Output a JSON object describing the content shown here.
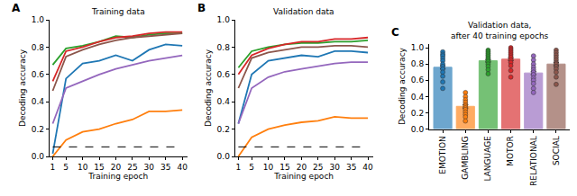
{
  "chart_data": [
    {
      "type": "line",
      "title": "Training data",
      "annotations": [
        "A"
      ],
      "x_label": "Training epoch",
      "y_label": "Decoding accuracy",
      "x": [
        1,
        5,
        10,
        15,
        20,
        25,
        30,
        35,
        40
      ],
      "series": [
        {
          "name": "EMOTION",
          "color": "#1f77b4",
          "values": [
            0.02,
            0.57,
            0.68,
            0.7,
            0.74,
            0.7,
            0.78,
            0.82,
            0.81
          ]
        },
        {
          "name": "GAMBLING",
          "color": "#ff7f0e",
          "values": [
            0.0,
            0.12,
            0.18,
            0.2,
            0.24,
            0.27,
            0.33,
            0.33,
            0.34
          ]
        },
        {
          "name": "LANGUAGE",
          "color": "#2ca02c",
          "values": [
            0.67,
            0.79,
            0.81,
            0.84,
            0.88,
            0.87,
            0.89,
            0.9,
            0.9
          ]
        },
        {
          "name": "MOTOR",
          "color": "#d62728",
          "values": [
            0.55,
            0.77,
            0.8,
            0.84,
            0.87,
            0.88,
            0.9,
            0.91,
            0.91
          ]
        },
        {
          "name": "RELATIONAL",
          "color": "#9467bd",
          "values": [
            0.24,
            0.5,
            0.55,
            0.6,
            0.64,
            0.67,
            0.7,
            0.72,
            0.74
          ]
        },
        {
          "name": "SOCIAL",
          "color": "#8c564b",
          "values": [
            0.48,
            0.73,
            0.78,
            0.82,
            0.85,
            0.87,
            0.88,
            0.89,
            0.9
          ]
        },
        {
          "color": "#000000",
          "line_style": "dashed",
          "values": [
            0.07,
            0.07,
            0.07,
            0.07,
            0.07,
            0.07,
            0.07,
            0.07,
            0.07
          ]
        }
      ],
      "xlim": [
        0,
        41.5
      ],
      "xticks": [
        1,
        5,
        10,
        15,
        20,
        25,
        30,
        35,
        40
      ],
      "ylim": [
        0,
        1
      ],
      "yticks": [
        {
          "value": 0,
          "label": "0.0"
        },
        {
          "value": 0.2,
          "label": "0.2"
        },
        {
          "value": 0.4,
          "label": "0.4"
        },
        {
          "value": 0.6,
          "label": "0.6"
        },
        {
          "value": 0.8,
          "label": "0.8"
        },
        {
          "value": 1,
          "label": "1.0"
        }
      ],
      "grid": false
    },
    {
      "type": "line",
      "title": "Validation data",
      "annotations": [
        "B"
      ],
      "x_label": "Training epoch",
      "y_label": "Decoding accuracy",
      "x": [
        1,
        5,
        10,
        15,
        20,
        25,
        30,
        35,
        40
      ],
      "series": [
        {
          "name": "EMOTION",
          "color": "#1f77b4",
          "values": [
            0.24,
            0.6,
            0.7,
            0.72,
            0.74,
            0.73,
            0.77,
            0.77,
            0.76
          ]
        },
        {
          "name": "GAMBLING",
          "color": "#ff7f0e",
          "values": [
            0.0,
            0.14,
            0.2,
            0.23,
            0.25,
            0.26,
            0.29,
            0.28,
            0.28
          ]
        },
        {
          "name": "LANGUAGE",
          "color": "#2ca02c",
          "values": [
            0.65,
            0.77,
            0.8,
            0.82,
            0.83,
            0.83,
            0.84,
            0.84,
            0.85
          ]
        },
        {
          "name": "MOTOR",
          "color": "#d62728",
          "values": [
            0.6,
            0.74,
            0.79,
            0.82,
            0.84,
            0.84,
            0.86,
            0.86,
            0.87
          ]
        },
        {
          "name": "RELATIONAL",
          "color": "#9467bd",
          "values": [
            0.24,
            0.5,
            0.58,
            0.62,
            0.64,
            0.66,
            0.68,
            0.69,
            0.69
          ]
        },
        {
          "name": "SOCIAL",
          "color": "#8c564b",
          "values": [
            0.5,
            0.72,
            0.76,
            0.78,
            0.8,
            0.8,
            0.81,
            0.81,
            0.8
          ]
        },
        {
          "color": "#000000",
          "line_style": "dashed",
          "values": [
            0.07,
            0.07,
            0.07,
            0.07,
            0.07,
            0.07,
            0.07,
            0.07,
            0.07
          ]
        }
      ],
      "xlim": [
        0,
        41.5
      ],
      "xticks": [
        1,
        5,
        10,
        15,
        20,
        25,
        30,
        35,
        40
      ],
      "ylim": [
        0,
        1
      ],
      "yticks": [
        {
          "value": 0,
          "label": "0.0"
        },
        {
          "value": 0.2,
          "label": "0.2"
        },
        {
          "value": 0.4,
          "label": "0.4"
        },
        {
          "value": 0.6,
          "label": "0.6"
        },
        {
          "value": 0.8,
          "label": "0.8"
        },
        {
          "value": 1,
          "label": "1.0"
        }
      ],
      "grid": false
    },
    {
      "type": "bar",
      "title": "Validation data,\nafter 40 training epochs",
      "annotations": [
        "C"
      ],
      "y_label": "Decoding accuracy",
      "categories": [
        "EMOTION",
        "GAMBLING",
        "LANGUAGE",
        "MOTOR",
        "RELATIONAL",
        "SOCIAL"
      ],
      "values": [
        0.76,
        0.28,
        0.84,
        0.86,
        0.69,
        0.8
      ],
      "errors": [
        0.02,
        0.02,
        0.015,
        0.015,
        0.02,
        0.02
      ],
      "colors": [
        "#1f77b4",
        "#ff7f0e",
        "#2ca02c",
        "#d62728",
        "#9467bd",
        "#8c564b"
      ],
      "points": [
        [
          0.95,
          0.92,
          0.9,
          0.87,
          0.84,
          0.8,
          0.77,
          0.74,
          0.7,
          0.65,
          0.58,
          0.5
        ],
        [
          0.45,
          0.4,
          0.36,
          0.33,
          0.3,
          0.28,
          0.26,
          0.24,
          0.21,
          0.18,
          0.15,
          0.1
        ],
        [
          0.97,
          0.95,
          0.93,
          0.91,
          0.89,
          0.87,
          0.85,
          0.83,
          0.8,
          0.77,
          0.73,
          0.68
        ],
        [
          1.0,
          0.98,
          0.96,
          0.94,
          0.92,
          0.9,
          0.88,
          0.85,
          0.82,
          0.78,
          0.72,
          0.64
        ],
        [
          0.9,
          0.85,
          0.8,
          0.76,
          0.73,
          0.7,
          0.67,
          0.63,
          0.6,
          0.56,
          0.5,
          0.45
        ],
        [
          0.97,
          0.94,
          0.91,
          0.88,
          0.85,
          0.82,
          0.8,
          0.77,
          0.74,
          0.7,
          0.64,
          0.55
        ]
      ],
      "ylim": [
        0,
        1.05
      ],
      "yticks": [
        {
          "value": 0,
          "label": "0.0"
        },
        {
          "value": 0.2,
          "label": "0.2"
        },
        {
          "value": 0.4,
          "label": "0.4"
        },
        {
          "value": 0.6,
          "label": "0.6"
        },
        {
          "value": 0.8,
          "label": "0.8"
        },
        {
          "value": 1,
          "label": "1.0"
        }
      ],
      "grid": false
    }
  ]
}
